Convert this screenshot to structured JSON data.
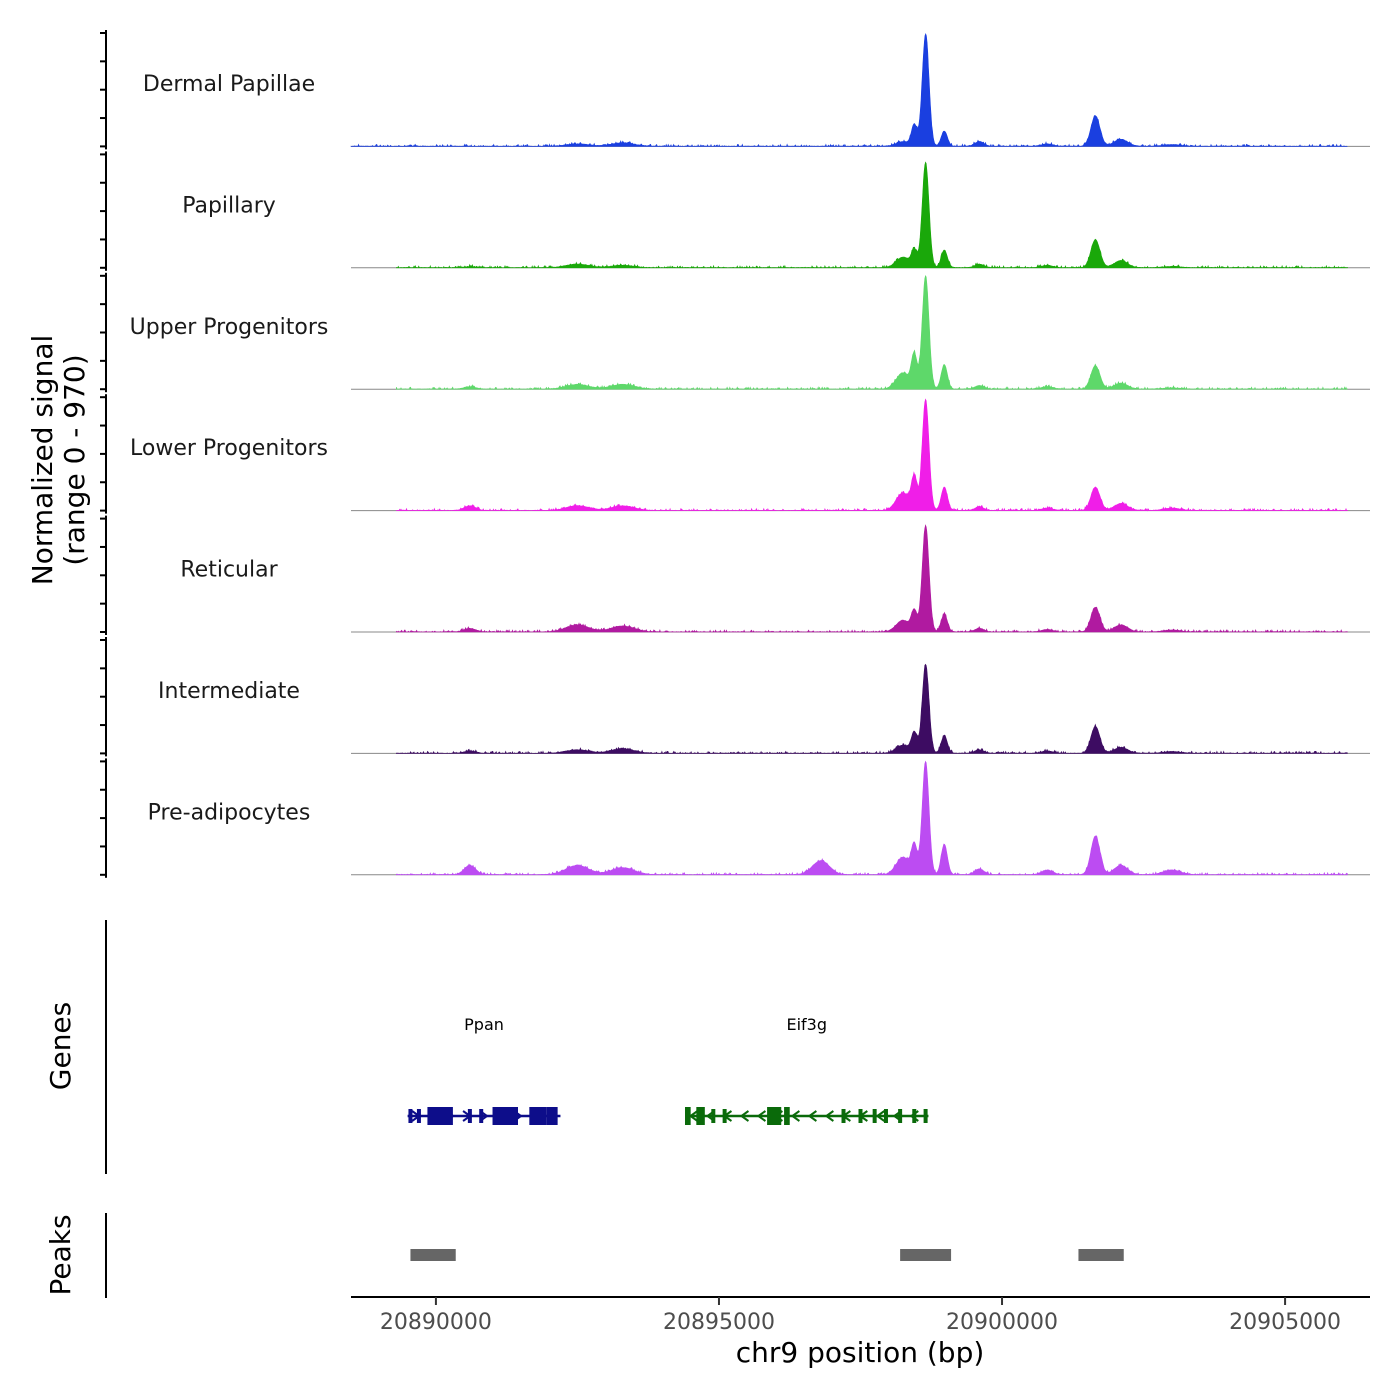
{
  "chart_data": {
    "type": "area",
    "title": "",
    "chromosome": "chr9",
    "xlabel": "chr9 position (bp)",
    "ylabel_line1": "Normalized signal",
    "ylabel_line2": "(range 0 - 970)",
    "xlim": [
      20888500,
      20906500
    ],
    "ylim": [
      0,
      970
    ],
    "x_ticks": [
      {
        "value": 20890000,
        "label": "20890000"
      },
      {
        "value": 20895000,
        "label": "20895000"
      },
      {
        "value": 20900000,
        "label": "20900000"
      },
      {
        "value": 20905000,
        "label": "20905000"
      }
    ],
    "peak_shapes": [
      {
        "center": 20898650,
        "width": 60
      },
      {
        "center": 20898450,
        "width": 50
      },
      {
        "center": 20898980,
        "width": 55
      },
      {
        "center": 20898250,
        "width": 120
      },
      {
        "center": 20901650,
        "width": 80
      },
      {
        "center": 20902100,
        "width": 120
      },
      {
        "center": 20896800,
        "width": 150
      },
      {
        "center": 20893300,
        "width": 200
      },
      {
        "center": 20892500,
        "width": 200
      },
      {
        "center": 20890600,
        "width": 100
      },
      {
        "center": 20899600,
        "width": 80
      },
      {
        "center": 20900800,
        "width": 100
      },
      {
        "center": 20903000,
        "width": 150
      }
    ],
    "series": [
      {
        "name": "Dermal Papillae",
        "color": "#1a3fe0",
        "x_start": 20888500,
        "values": [
          960,
          180,
          130,
          40,
          260,
          60,
          0,
          30,
          20,
          0,
          40,
          20,
          15
        ]
      },
      {
        "name": "Papillary",
        "color": "#1aa80a",
        "x_start": 20889300,
        "values": [
          900,
          140,
          150,
          90,
          240,
          60,
          0,
          20,
          30,
          10,
          30,
          20,
          10
        ]
      },
      {
        "name": "Upper Progenitors",
        "color": "#5ed86a",
        "x_start": 20889300,
        "values": [
          970,
          280,
          210,
          140,
          200,
          50,
          0,
          40,
          40,
          20,
          30,
          20,
          10
        ]
      },
      {
        "name": "Lower Progenitors",
        "color": "#f01ee8",
        "x_start": 20889300,
        "values": [
          950,
          270,
          200,
          150,
          200,
          60,
          0,
          40,
          40,
          40,
          30,
          20,
          20
        ]
      },
      {
        "name": "Reticular",
        "color": "#b01aa0",
        "x_start": 20889300,
        "values": [
          910,
          170,
          150,
          100,
          210,
          60,
          0,
          50,
          60,
          30,
          30,
          20,
          15
        ]
      },
      {
        "name": "Intermediate",
        "color": "#3d0c62",
        "x_start": 20889300,
        "values": [
          760,
          170,
          150,
          70,
          230,
          50,
          0,
          40,
          30,
          20,
          30,
          20,
          15
        ]
      },
      {
        "name": "Pre-adipocytes",
        "color": "#bc4cf2",
        "x_start": 20889300,
        "values": [
          970,
          240,
          260,
          150,
          330,
          80,
          120,
          60,
          80,
          80,
          50,
          40,
          40
        ]
      }
    ],
    "genes": [
      {
        "name": "Ppan",
        "color": "#0d0d8a",
        "strand": "+",
        "start": 20889500,
        "end": 20892200,
        "exons": [
          [
            20889850,
            20890300
          ],
          [
            20891000,
            20891450
          ],
          [
            20891650,
            20891950
          ],
          [
            20891950,
            20892150
          ]
        ],
        "small_exons": [
          20889550,
          20889700,
          20890600,
          20890800
        ]
      },
      {
        "name": "Eif3g",
        "color": "#0a6a0a",
        "strand": "-",
        "start": 20894400,
        "end": 20898700,
        "exons": [
          [
            20894400,
            20894500
          ],
          [
            20894600,
            20894750
          ],
          [
            20895850,
            20896100
          ],
          [
            20896150,
            20896250
          ]
        ],
        "small_exons": [
          20894900,
          20895100,
          20897200,
          20897500,
          20897750,
          20897950,
          20898200,
          20898450,
          20898650
        ]
      }
    ],
    "peaks": [
      {
        "start": 20889550,
        "end": 20890350
      },
      {
        "start": 20898200,
        "end": 20899100
      },
      {
        "start": 20901350,
        "end": 20902150
      }
    ],
    "panels": {
      "genes_title": "Genes",
      "peaks_title": "Peaks"
    }
  }
}
